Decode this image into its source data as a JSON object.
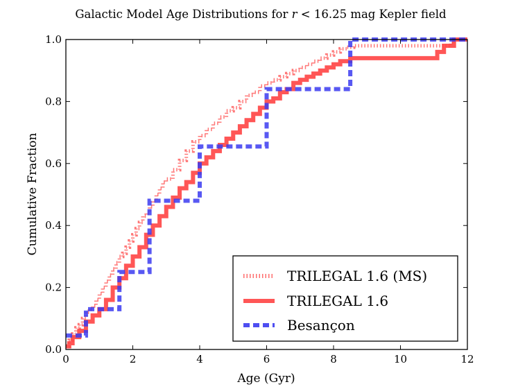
{
  "chart_data": {
    "type": "line",
    "title": {
      "before": "Galactic Model Age Distributions for ",
      "variable": "r",
      "relation": " < 16.25",
      "after": " mag Kepler field"
    },
    "xlabel": "Age (Gyr)",
    "ylabel": "Cumulative Fraction",
    "xlim": [
      0,
      12
    ],
    "ylim": [
      0,
      1
    ],
    "xticks": [
      0,
      2,
      4,
      6,
      8,
      10,
      12
    ],
    "yticks": [
      0.0,
      0.2,
      0.4,
      0.6,
      0.8,
      1.0
    ],
    "xtick_labels": [
      "0",
      "2",
      "4",
      "6",
      "8",
      "10",
      "12"
    ],
    "ytick_labels": [
      "0.0",
      "0.2",
      "0.4",
      "0.6",
      "0.8",
      "1.0"
    ],
    "legend_position": "lower-right",
    "series": [
      {
        "name": "TRILEGAL 1.6 (MS)",
        "color": "#ff5555",
        "style": "dotted-step",
        "x": [
          0.0,
          0.1,
          0.2,
          0.3,
          0.4,
          0.5,
          0.6,
          0.7,
          0.8,
          0.9,
          1.0,
          1.1,
          1.2,
          1.3,
          1.4,
          1.5,
          1.6,
          1.7,
          1.8,
          1.9,
          2.0,
          2.1,
          2.2,
          2.3,
          2.4,
          2.5,
          2.6,
          2.7,
          2.8,
          2.9,
          3.0,
          3.2,
          3.4,
          3.6,
          3.8,
          4.0,
          4.2,
          4.4,
          4.6,
          4.8,
          5.0,
          5.2,
          5.4,
          5.6,
          5.8,
          6.0,
          6.2,
          6.4,
          6.6,
          6.8,
          7.0,
          7.2,
          7.4,
          7.6,
          7.8,
          8.0,
          8.2,
          8.4,
          8.6,
          8.8,
          9.0,
          11.5,
          11.6,
          12.0
        ],
        "y": [
          0.01,
          0.03,
          0.05,
          0.07,
          0.08,
          0.1,
          0.12,
          0.13,
          0.14,
          0.16,
          0.18,
          0.2,
          0.22,
          0.24,
          0.26,
          0.28,
          0.3,
          0.31,
          0.33,
          0.35,
          0.37,
          0.39,
          0.41,
          0.43,
          0.44,
          0.46,
          0.48,
          0.5,
          0.52,
          0.54,
          0.55,
          0.58,
          0.61,
          0.64,
          0.67,
          0.69,
          0.71,
          0.73,
          0.75,
          0.77,
          0.78,
          0.8,
          0.82,
          0.83,
          0.85,
          0.86,
          0.87,
          0.88,
          0.89,
          0.9,
          0.91,
          0.92,
          0.93,
          0.94,
          0.95,
          0.96,
          0.97,
          0.975,
          0.98,
          0.98,
          0.98,
          0.99,
          1.0,
          1.0
        ]
      },
      {
        "name": "TRILEGAL 1.6",
        "color": "#ff4444",
        "style": "solid-step",
        "x": [
          0.0,
          0.1,
          0.2,
          0.4,
          0.6,
          0.8,
          1.0,
          1.2,
          1.4,
          1.6,
          1.8,
          2.0,
          2.2,
          2.4,
          2.6,
          2.8,
          3.0,
          3.2,
          3.4,
          3.6,
          3.8,
          4.0,
          4.2,
          4.4,
          4.6,
          4.8,
          5.0,
          5.2,
          5.4,
          5.6,
          5.8,
          6.0,
          6.2,
          6.4,
          6.6,
          6.8,
          7.0,
          7.2,
          7.4,
          7.6,
          7.8,
          8.0,
          8.2,
          8.5,
          11.1,
          11.3,
          11.6,
          12.0
        ],
        "y": [
          0.01,
          0.02,
          0.04,
          0.06,
          0.09,
          0.11,
          0.13,
          0.16,
          0.2,
          0.23,
          0.27,
          0.3,
          0.33,
          0.37,
          0.4,
          0.43,
          0.46,
          0.49,
          0.52,
          0.54,
          0.57,
          0.6,
          0.62,
          0.64,
          0.66,
          0.68,
          0.7,
          0.72,
          0.74,
          0.76,
          0.78,
          0.8,
          0.81,
          0.83,
          0.84,
          0.86,
          0.87,
          0.88,
          0.89,
          0.9,
          0.91,
          0.92,
          0.93,
          0.94,
          0.96,
          0.98,
          1.0,
          1.0
        ]
      },
      {
        "name": "Besançon",
        "color": "#3b3bf0",
        "style": "dashed-step",
        "x": [
          0.0,
          0.5,
          0.6,
          1.5,
          1.6,
          2.5,
          4.0,
          6.0,
          8.5,
          12.0
        ],
        "y": [
          0.045,
          0.045,
          0.13,
          0.13,
          0.25,
          0.48,
          0.655,
          0.84,
          1.0,
          1.0
        ]
      }
    ]
  }
}
